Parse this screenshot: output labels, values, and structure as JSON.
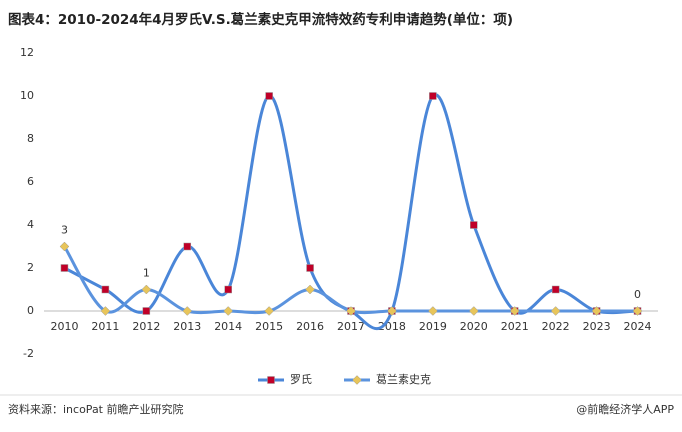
{
  "chart_data": {
    "type": "line",
    "title": "图表4：2010-2024年4月罗氏V.S.葛兰素史克甲流特效药专利申请趋势(单位：项)",
    "categories": [
      "2010",
      "2011",
      "2012",
      "2013",
      "2014",
      "2015",
      "2016",
      "2017",
      "2018",
      "2019",
      "2020",
      "2021",
      "2022",
      "2023",
      "2024"
    ],
    "series": [
      {
        "name": "罗氏",
        "color": "#4a86d8",
        "marker_color": "#c00028",
        "marker": "square",
        "values": [
          2,
          1,
          0,
          3,
          1,
          10,
          2,
          0,
          0,
          10,
          4,
          0,
          1,
          0,
          0
        ]
      },
      {
        "name": "葛兰素史克",
        "color": "#5b93de",
        "marker_color": "#e8c55a",
        "marker": "diamond",
        "values": [
          3,
          0,
          1,
          0,
          0,
          0,
          1,
          0,
          0,
          0,
          0,
          0,
          0,
          0,
          0
        ],
        "value_labels": [
          "3",
          null,
          "1",
          null,
          null,
          null,
          null,
          null,
          null,
          null,
          null,
          null,
          null,
          null,
          "0"
        ]
      }
    ],
    "ylim": [
      -2,
      12
    ],
    "yticks": [
      -2,
      0,
      2,
      4,
      6,
      8,
      10,
      12
    ],
    "smooth": true,
    "legend": "bottom",
    "source": "资料来源：incoPat 前瞻产业研究院",
    "credit": "@前瞻经济学人APP"
  }
}
